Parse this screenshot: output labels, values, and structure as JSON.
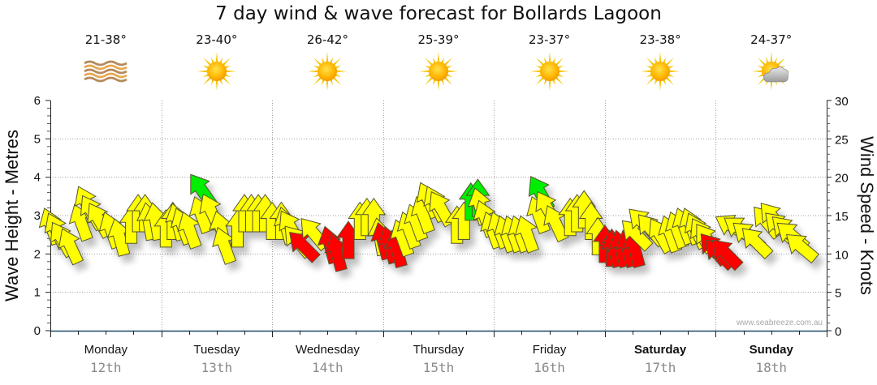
{
  "title": "7 day wind & wave forecast for Bollards Lagoon",
  "forecast": [
    {
      "day": "Monday",
      "date": "12th",
      "temps": "21-38°",
      "icon": "dust-haze-icon",
      "bold": false
    },
    {
      "day": "Tuesday",
      "date": "13th",
      "temps": "23-40°",
      "icon": "sunny-icon",
      "bold": false
    },
    {
      "day": "Wednesday",
      "date": "14th",
      "temps": "26-42°",
      "icon": "sunny-icon",
      "bold": false
    },
    {
      "day": "Thursday",
      "date": "15th",
      "temps": "25-39°",
      "icon": "sunny-icon",
      "bold": false
    },
    {
      "day": "Friday",
      "date": "16th",
      "temps": "23-37°",
      "icon": "sunny-icon",
      "bold": false
    },
    {
      "day": "Saturday",
      "date": "17th",
      "temps": "23-38°",
      "icon": "sunny-icon",
      "bold": true
    },
    {
      "day": "Sunday",
      "date": "18th",
      "temps": "24-37°",
      "icon": "partly-cloudy-icon",
      "bold": true
    }
  ],
  "watermark": "www.seabreeze.com.au",
  "colors": {
    "normal": "#ffff00",
    "strong": "#ff0000",
    "light": "#00ee00",
    "outline": "#555533",
    "axis": "#1a4a66",
    "grid": "#a0a0a0"
  },
  "chart_data": {
    "type": "scatter",
    "title": "7 day wind & wave forecast for Bollards Lagoon",
    "ylabel_left": "Wave Height - Metres",
    "ylabel_right": "Wind Speed - Knots",
    "ylim_left": [
      0,
      6
    ],
    "ylim_right": [
      0,
      30
    ],
    "yticks_left": [
      "0",
      "1",
      "2",
      "3",
      "4",
      "5",
      "6"
    ],
    "yticks_right": [
      "0",
      "5",
      "10",
      "15",
      "20",
      "25",
      "30"
    ],
    "xlim_hours": [
      0,
      168
    ],
    "grid": true,
    "x_categories": [
      "Monday",
      "Tuesday",
      "Wednesday",
      "Thursday",
      "Friday",
      "Saturday",
      "Sunday"
    ],
    "x_dates": [
      "12th",
      "13th",
      "14th",
      "15th",
      "16th",
      "17th",
      "18th"
    ],
    "wind_series": {
      "name": "Wind (knots, direction as arrow rotation degrees)",
      "points": [
        {
          "h": 1.5,
          "kt": 13.5,
          "dir": -20,
          "c": "normal"
        },
        {
          "h": 3,
          "kt": 13,
          "dir": -25,
          "c": "normal"
        },
        {
          "h": 4.5,
          "kt": 12,
          "dir": -30,
          "c": "normal"
        },
        {
          "h": 6,
          "kt": 11,
          "dir": -25,
          "c": "normal"
        },
        {
          "h": 8,
          "kt": 14,
          "dir": -20,
          "c": "normal"
        },
        {
          "h": 9.5,
          "kt": 16.5,
          "dir": -25,
          "c": "normal"
        },
        {
          "h": 11,
          "kt": 15.5,
          "dir": -30,
          "c": "normal"
        },
        {
          "h": 12.5,
          "kt": 14.5,
          "dir": -30,
          "c": "normal"
        },
        {
          "h": 14.5,
          "kt": 13,
          "dir": -20,
          "c": "normal"
        },
        {
          "h": 16,
          "kt": 12,
          "dir": -15,
          "c": "normal"
        },
        {
          "h": 17.5,
          "kt": 13.5,
          "dir": 0,
          "c": "normal"
        },
        {
          "h": 19,
          "kt": 15,
          "dir": 0,
          "c": "normal"
        },
        {
          "h": 20.5,
          "kt": 15,
          "dir": 0,
          "c": "normal"
        },
        {
          "h": 22,
          "kt": 14,
          "dir": -10,
          "c": "normal"
        },
        {
          "h": 23.5,
          "kt": 14,
          "dir": -10,
          "c": "normal"
        },
        {
          "h": 25,
          "kt": 13,
          "dir": 0,
          "c": "normal"
        },
        {
          "h": 26.5,
          "kt": 14,
          "dir": 0,
          "c": "normal"
        },
        {
          "h": 28.5,
          "kt": 14,
          "dir": -15,
          "c": "normal"
        },
        {
          "h": 30,
          "kt": 13.5,
          "dir": -20,
          "c": "normal"
        },
        {
          "h": 31.5,
          "kt": 13,
          "dir": -20,
          "c": "normal"
        },
        {
          "h": 34,
          "kt": 15,
          "dir": -20,
          "c": "normal"
        },
        {
          "h": 35,
          "kt": 18.5,
          "dir": -35,
          "c": "light"
        },
        {
          "h": 36.5,
          "kt": 15.5,
          "dir": -25,
          "c": "normal"
        },
        {
          "h": 38,
          "kt": 13,
          "dir": -15,
          "c": "normal"
        },
        {
          "h": 39,
          "kt": 11,
          "dir": -20,
          "c": "normal"
        },
        {
          "h": 40.5,
          "kt": 13,
          "dir": 0,
          "c": "normal"
        },
        {
          "h": 42,
          "kt": 15,
          "dir": 0,
          "c": "normal"
        },
        {
          "h": 43.5,
          "kt": 15,
          "dir": 0,
          "c": "normal"
        },
        {
          "h": 45,
          "kt": 15,
          "dir": 0,
          "c": "normal"
        },
        {
          "h": 46.5,
          "kt": 15,
          "dir": 0,
          "c": "normal"
        },
        {
          "h": 48,
          "kt": 14,
          "dir": 0,
          "c": "normal"
        },
        {
          "h": 50,
          "kt": 14,
          "dir": 0,
          "c": "normal"
        },
        {
          "h": 52,
          "kt": 13.5,
          "dir": -15,
          "c": "normal"
        },
        {
          "h": 54,
          "kt": 13.5,
          "dir": -30,
          "c": "normal"
        },
        {
          "h": 56,
          "kt": 12,
          "dir": -40,
          "c": "normal"
        },
        {
          "h": 57.5,
          "kt": 11.5,
          "dir": -45,
          "c": "strong"
        },
        {
          "h": 59.5,
          "kt": 13,
          "dir": -40,
          "c": "normal"
        },
        {
          "h": 61.5,
          "kt": 11,
          "dir": -15,
          "c": "strong"
        },
        {
          "h": 63,
          "kt": 10,
          "dir": -15,
          "c": "strong"
        },
        {
          "h": 64.5,
          "kt": 11.5,
          "dir": 0,
          "c": "strong"
        },
        {
          "h": 67,
          "kt": 14,
          "dir": 0,
          "c": "normal"
        },
        {
          "h": 68.5,
          "kt": 14.5,
          "dir": 0,
          "c": "normal"
        },
        {
          "h": 70,
          "kt": 14.5,
          "dir": 0,
          "c": "normal"
        },
        {
          "h": 72,
          "kt": 12,
          "dir": -10,
          "c": "normal"
        },
        {
          "h": 73,
          "kt": 11.5,
          "dir": -15,
          "c": "strong"
        },
        {
          "h": 74.5,
          "kt": 11,
          "dir": -15,
          "c": "strong"
        },
        {
          "h": 76,
          "kt": 10.5,
          "dir": -15,
          "c": "strong"
        },
        {
          "h": 77.5,
          "kt": 12,
          "dir": -20,
          "c": "normal"
        },
        {
          "h": 79,
          "kt": 13,
          "dir": -20,
          "c": "normal"
        },
        {
          "h": 80.5,
          "kt": 14,
          "dir": -20,
          "c": "normal"
        },
        {
          "h": 82,
          "kt": 15,
          "dir": -20,
          "c": "normal"
        },
        {
          "h": 83.5,
          "kt": 17,
          "dir": -25,
          "c": "normal"
        },
        {
          "h": 85,
          "kt": 16.5,
          "dir": -25,
          "c": "normal"
        },
        {
          "h": 86.5,
          "kt": 16,
          "dir": -30,
          "c": "normal"
        },
        {
          "h": 88,
          "kt": 13.5,
          "dir": 0,
          "c": "normal"
        },
        {
          "h": 89.5,
          "kt": 14,
          "dir": 0,
          "c": "normal"
        },
        {
          "h": 91,
          "kt": 16.5,
          "dir": 0,
          "c": "light"
        },
        {
          "h": 92.5,
          "kt": 17,
          "dir": 0,
          "c": "light"
        },
        {
          "h": 94,
          "kt": 16,
          "dir": -15,
          "c": "normal"
        },
        {
          "h": 95.5,
          "kt": 14.5,
          "dir": -20,
          "c": "normal"
        },
        {
          "h": 97,
          "kt": 13,
          "dir": -20,
          "c": "normal"
        },
        {
          "h": 98.5,
          "kt": 13,
          "dir": -20,
          "c": "normal"
        },
        {
          "h": 100,
          "kt": 12.5,
          "dir": -20,
          "c": "normal"
        },
        {
          "h": 101.5,
          "kt": 12.5,
          "dir": -20,
          "c": "normal"
        },
        {
          "h": 103,
          "kt": 12.5,
          "dir": -20,
          "c": "normal"
        },
        {
          "h": 104.5,
          "kt": 12.5,
          "dir": -20,
          "c": "normal"
        },
        {
          "h": 107,
          "kt": 15,
          "dir": -20,
          "c": "normal"
        },
        {
          "h": 108,
          "kt": 18,
          "dir": -30,
          "c": "light"
        },
        {
          "h": 109.5,
          "kt": 16,
          "dir": -30,
          "c": "normal"
        },
        {
          "h": 111,
          "kt": 14,
          "dir": -25,
          "c": "normal"
        },
        {
          "h": 112.5,
          "kt": 14.5,
          "dir": 0,
          "c": "normal"
        },
        {
          "h": 114,
          "kt": 15,
          "dir": 0,
          "c": "normal"
        },
        {
          "h": 115.5,
          "kt": 15.5,
          "dir": 0,
          "c": "normal"
        },
        {
          "h": 117,
          "kt": 14,
          "dir": 0,
          "c": "normal"
        },
        {
          "h": 118.5,
          "kt": 12,
          "dir": 0,
          "c": "normal"
        },
        {
          "h": 120,
          "kt": 11,
          "dir": 0,
          "c": "strong"
        },
        {
          "h": 121.5,
          "kt": 10.5,
          "dir": 0,
          "c": "strong"
        },
        {
          "h": 123,
          "kt": 10.5,
          "dir": -15,
          "c": "strong"
        },
        {
          "h": 124.5,
          "kt": 10.5,
          "dir": -15,
          "c": "strong"
        },
        {
          "h": 126,
          "kt": 10.5,
          "dir": -15,
          "c": "strong"
        },
        {
          "h": 127.5,
          "kt": 10.5,
          "dir": -15,
          "c": "strong"
        },
        {
          "h": 129.5,
          "kt": 13,
          "dir": -45,
          "c": "normal"
        },
        {
          "h": 131,
          "kt": 14.5,
          "dir": -45,
          "c": "normal"
        },
        {
          "h": 132.5,
          "kt": 13.5,
          "dir": -40,
          "c": "normal"
        },
        {
          "h": 134,
          "kt": 12.5,
          "dir": -30,
          "c": "normal"
        },
        {
          "h": 135.5,
          "kt": 12.5,
          "dir": -20,
          "c": "normal"
        },
        {
          "h": 137,
          "kt": 13,
          "dir": -20,
          "c": "normal"
        },
        {
          "h": 138.5,
          "kt": 13.5,
          "dir": -20,
          "c": "normal"
        },
        {
          "h": 140,
          "kt": 13.5,
          "dir": -20,
          "c": "normal"
        },
        {
          "h": 141.5,
          "kt": 13,
          "dir": -25,
          "c": "normal"
        },
        {
          "h": 143,
          "kt": 12.5,
          "dir": -30,
          "c": "normal"
        },
        {
          "h": 144.5,
          "kt": 12,
          "dir": -35,
          "c": "normal"
        },
        {
          "h": 146,
          "kt": 11,
          "dir": -40,
          "c": "strong"
        },
        {
          "h": 147.5,
          "kt": 10.5,
          "dir": -45,
          "c": "strong"
        },
        {
          "h": 149,
          "kt": 10.5,
          "dir": -45,
          "c": "strong"
        },
        {
          "h": 151,
          "kt": 14.5,
          "dir": -60,
          "c": "normal"
        },
        {
          "h": 152.5,
          "kt": 14,
          "dir": -55,
          "c": "normal"
        },
        {
          "h": 154,
          "kt": 13,
          "dir": -50,
          "c": "normal"
        },
        {
          "h": 155.5,
          "kt": 12,
          "dir": -45,
          "c": "normal"
        },
        {
          "h": 157.5,
          "kt": 14.5,
          "dir": -40,
          "c": "normal"
        },
        {
          "h": 159,
          "kt": 15,
          "dir": -40,
          "c": "normal"
        },
        {
          "h": 160.5,
          "kt": 14,
          "dir": -45,
          "c": "normal"
        },
        {
          "h": 162,
          "kt": 13.5,
          "dir": -45,
          "c": "normal"
        },
        {
          "h": 163.5,
          "kt": 13,
          "dir": -50,
          "c": "normal"
        },
        {
          "h": 165.5,
          "kt": 11.5,
          "dir": -50,
          "c": "normal"
        }
      ]
    }
  }
}
